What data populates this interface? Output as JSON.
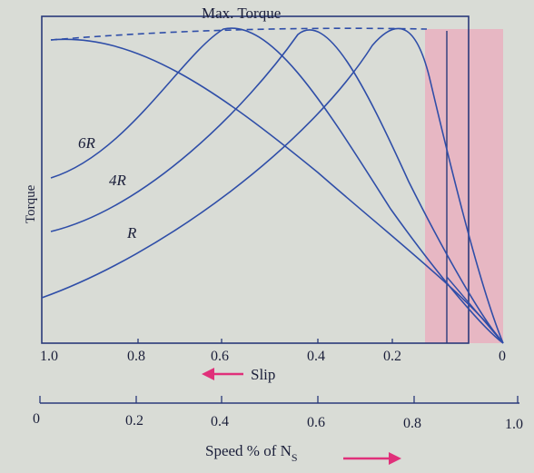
{
  "title": "Max. Torque",
  "y_axis_label": "Torque",
  "curve_labels": [
    "6R",
    "4R",
    "R"
  ],
  "slip_axis": {
    "label": "Slip",
    "ticks": [
      "1.0",
      "0.8",
      "0.6",
      "0.4",
      "0.2",
      "0"
    ]
  },
  "speed_axis": {
    "label": "Speed % of N",
    "label_subscript": "S",
    "ticks": [
      "0",
      "0.2",
      "0.4",
      "0.6",
      "0.8",
      "1.0"
    ]
  },
  "colors": {
    "curve": "#2f4ea8",
    "axis": "#1b2a6b",
    "text": "#1b1f3a",
    "shade": "#e8b9c4",
    "arrow": "#e0307a",
    "paper": "#d9dcd6"
  }
}
